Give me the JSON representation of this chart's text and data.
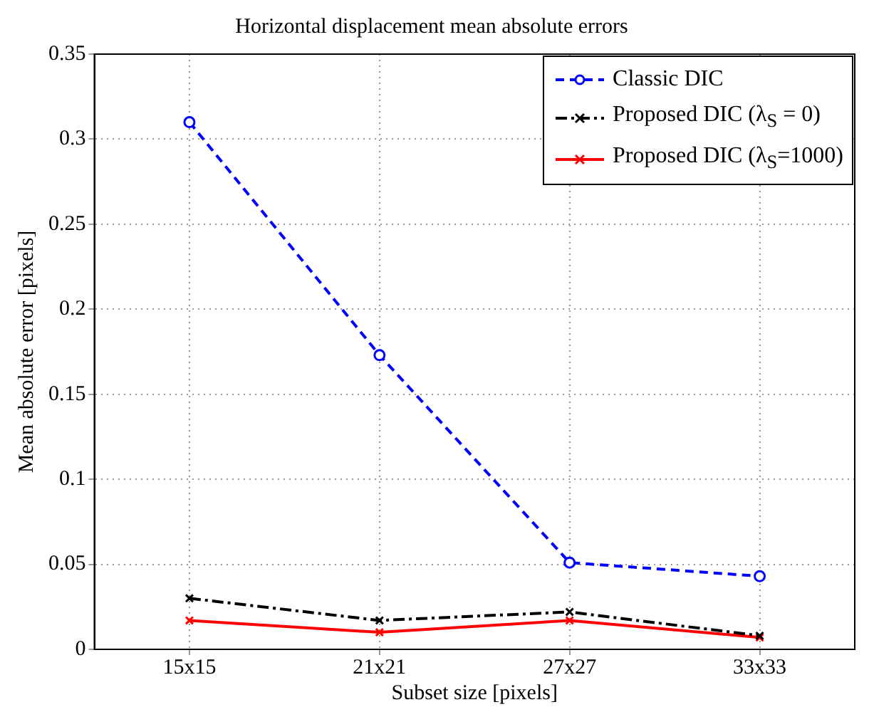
{
  "chart_data": {
    "type": "line",
    "title": "Horizontal displacement mean absolute errors",
    "xlabel": "Subset size [pixels]",
    "ylabel": "Mean absolute error [pixels]",
    "categories": [
      "15x15",
      "21x21",
      "27x27",
      "33x33"
    ],
    "ylim": [
      0,
      0.35
    ],
    "yticks": [
      0,
      0.05,
      0.1,
      0.15,
      0.2,
      0.25,
      0.3,
      0.35
    ],
    "grid": true,
    "legend": "top right",
    "series": [
      {
        "name": "Classic DIC",
        "color": "#0000ff",
        "marker": "circle",
        "line_style": "dashed",
        "values": [
          0.31,
          0.173,
          0.051,
          0.043
        ]
      },
      {
        "name": "Proposed DIC (λ$_{S}$ = 0)",
        "color": "#000000",
        "marker": "cross",
        "line_style": "dashdot",
        "values": [
          0.03,
          0.017,
          0.022,
          0.008
        ]
      },
      {
        "name": "Proposed DIC (λ$_{S}$=1000)",
        "color": "#ff0000",
        "marker": "cross",
        "line_style": "solid",
        "values": [
          0.017,
          0.01,
          0.017,
          0.007
        ]
      }
    ]
  }
}
